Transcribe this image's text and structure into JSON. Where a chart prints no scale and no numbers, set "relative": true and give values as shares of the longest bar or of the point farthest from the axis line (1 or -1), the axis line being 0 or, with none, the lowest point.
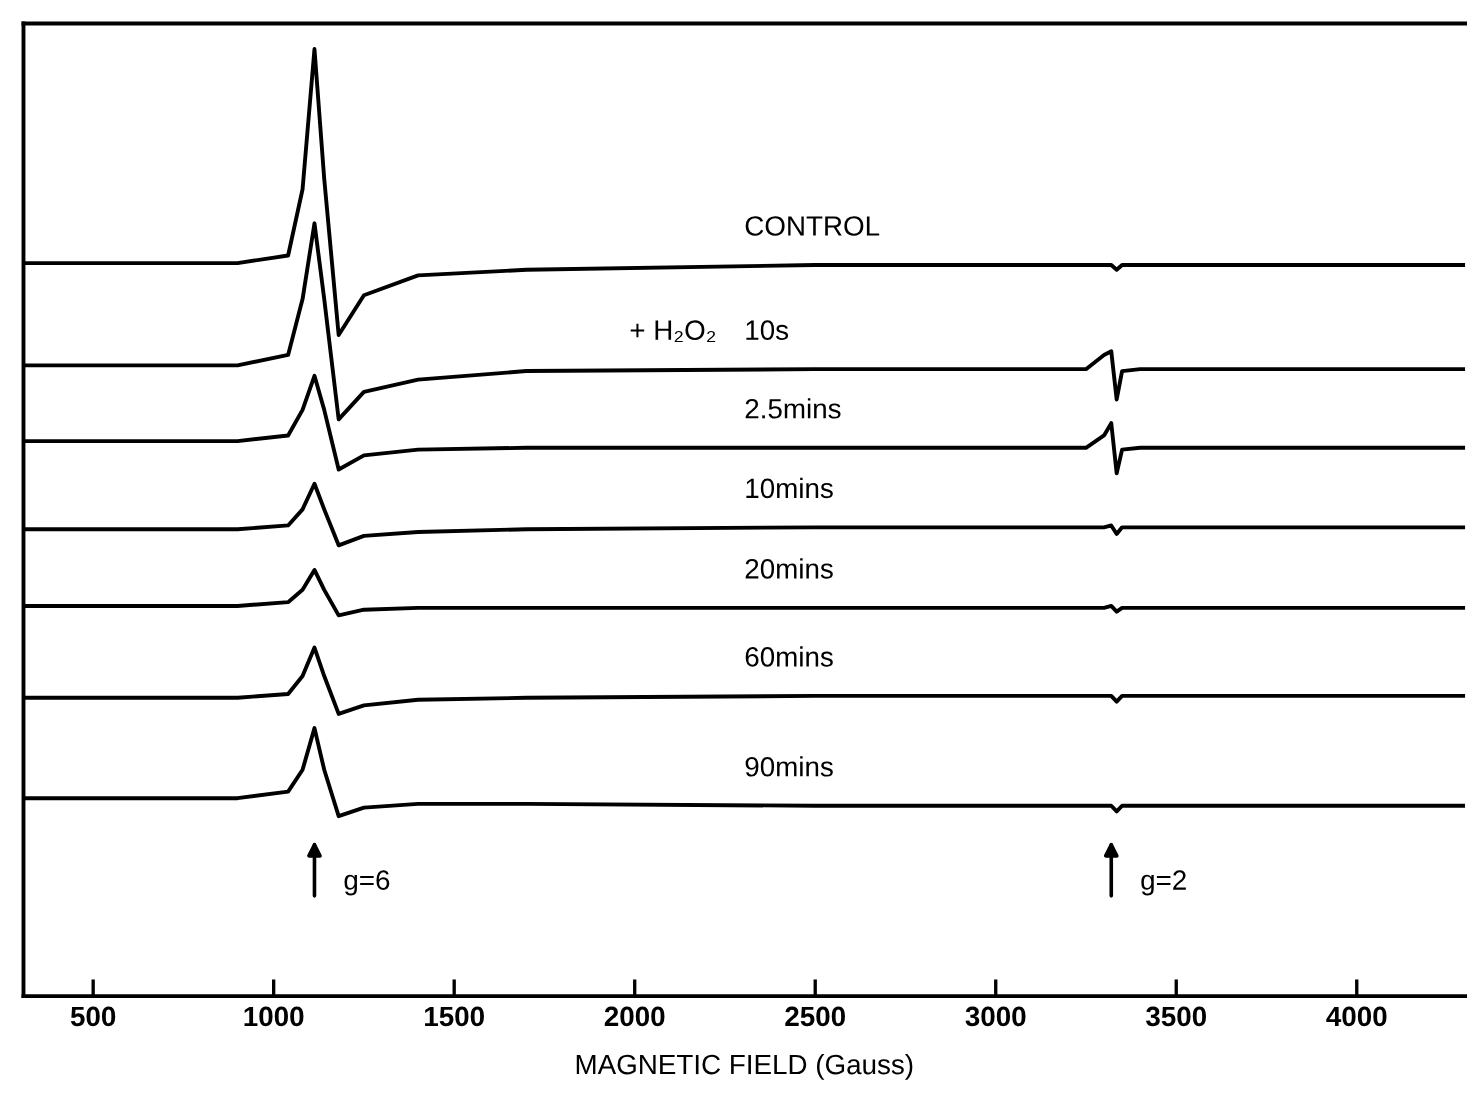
{
  "chart_data": {
    "type": "line",
    "relative": true,
    "xlabel": "MAGNETIC FIELD (Gauss)",
    "x": [
      307,
      900,
      1040,
      1080,
      1113,
      1140,
      1180,
      1250,
      1400,
      1700,
      2500,
      3250,
      3300,
      3320,
      3335,
      3350,
      3400,
      4300
    ],
    "xlim": [
      307,
      4300
    ],
    "xticks": [
      500,
      1000,
      1500,
      2000,
      2500,
      3000,
      3500,
      4000
    ],
    "grid": false,
    "legend": false,
    "marker": "none",
    "line_style": "solid",
    "series": [
      {
        "name": "CONTROL",
        "color": "#000000",
        "values": [
          0.774,
          0.774,
          0.782,
          0.852,
          1.0,
          0.863,
          0.698,
          0.74,
          0.761,
          0.767,
          0.772,
          0.772,
          0.772,
          0.772,
          0.767,
          0.772,
          0.772,
          0.772
        ]
      },
      {
        "name": "10s",
        "color": "#000000",
        "values": [
          0.666,
          0.666,
          0.677,
          0.736,
          0.816,
          0.736,
          0.609,
          0.638,
          0.651,
          0.66,
          0.662,
          0.662,
          0.677,
          0.681,
          0.63,
          0.66,
          0.662,
          0.662
        ]
      },
      {
        "name": "2.5mins",
        "color": "#000000",
        "values": [
          0.586,
          0.586,
          0.592,
          0.619,
          0.655,
          0.619,
          0.556,
          0.571,
          0.577,
          0.579,
          0.579,
          0.579,
          0.592,
          0.605,
          0.552,
          0.577,
          0.579,
          0.579
        ]
      },
      {
        "name": "10mins",
        "color": "#000000",
        "values": [
          0.493,
          0.493,
          0.497,
          0.514,
          0.541,
          0.514,
          0.476,
          0.486,
          0.49,
          0.493,
          0.495,
          0.495,
          0.495,
          0.497,
          0.488,
          0.495,
          0.495,
          0.495
        ]
      },
      {
        "name": "20mins",
        "color": "#000000",
        "values": [
          0.412,
          0.412,
          0.416,
          0.429,
          0.45,
          0.429,
          0.402,
          0.408,
          0.41,
          0.41,
          0.41,
          0.41,
          0.41,
          0.412,
          0.406,
          0.41,
          0.41,
          0.41
        ]
      },
      {
        "name": "60mins",
        "color": "#000000",
        "values": [
          0.315,
          0.315,
          0.319,
          0.338,
          0.368,
          0.338,
          0.298,
          0.307,
          0.313,
          0.315,
          0.317,
          0.317,
          0.317,
          0.317,
          0.311,
          0.317,
          0.317,
          0.317
        ]
      },
      {
        "name": "90mins",
        "color": "#000000",
        "values": [
          0.209,
          0.209,
          0.216,
          0.239,
          0.283,
          0.239,
          0.19,
          0.199,
          0.203,
          0.203,
          0.201,
          0.201,
          0.201,
          0.201,
          0.195,
          0.201,
          0.201,
          0.201
        ]
      }
    ],
    "annotations": [
      "+ H₂O₂",
      "g=6",
      "g=2"
    ]
  }
}
